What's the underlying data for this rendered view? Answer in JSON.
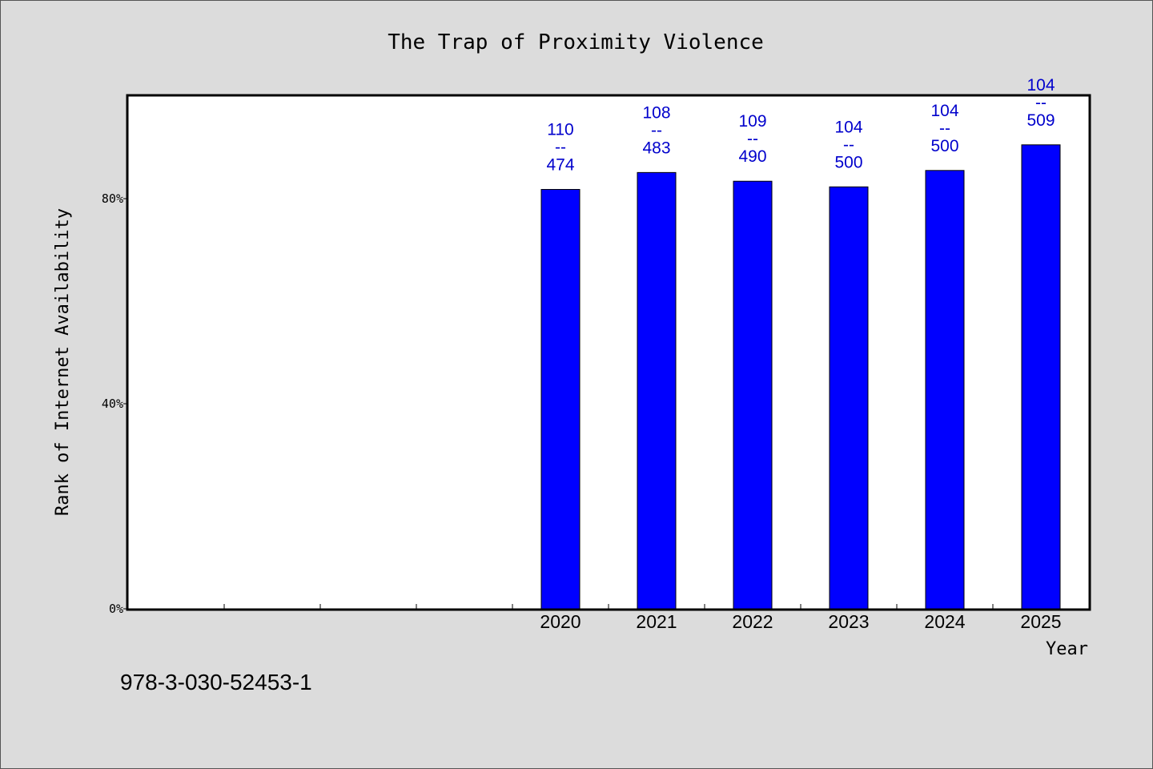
{
  "chart_data": {
    "type": "bar",
    "title": "The Trap of Proximity Violence",
    "xlabel": "Year",
    "ylabel": "Rank of Internet Availability",
    "categories": [
      "",
      "",
      "",
      "",
      "2020",
      "2021",
      "2022",
      "2023",
      "2024",
      "2025"
    ],
    "values": [
      null,
      null,
      null,
      null,
      81.8,
      85.1,
      83.4,
      82.3,
      85.5,
      90.5
    ],
    "data_labels": [
      null,
      null,
      null,
      null,
      {
        "top": "110",
        "mid": "--",
        "bottom": "474"
      },
      {
        "top": "108",
        "mid": "--",
        "bottom": "483"
      },
      {
        "top": "109",
        "mid": "--",
        "bottom": "490"
      },
      {
        "top": "104",
        "mid": "--",
        "bottom": "500"
      },
      {
        "top": "104",
        "mid": "--",
        "bottom": "500"
      },
      {
        "top": "104",
        "mid": "--",
        "bottom": "509"
      }
    ],
    "ylim": [
      0,
      100
    ],
    "yticks": [
      0,
      40,
      80
    ],
    "ytick_labels": [
      "0%",
      "40%",
      "80%"
    ],
    "bar_color": "#0000ff",
    "label_color": "#0000cc",
    "grid": false,
    "legend": "none"
  },
  "footnote": "978-3-030-52453-1"
}
